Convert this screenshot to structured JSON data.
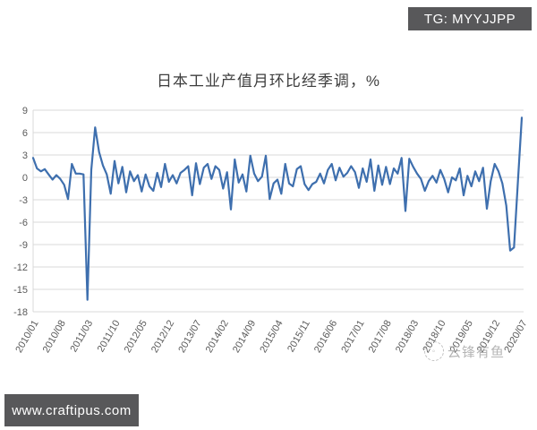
{
  "header": {
    "badge_label": "TG: MYYJJPP"
  },
  "footer": {
    "site_url": "www.craftipus.com"
  },
  "watermark": {
    "text": "云锋有鱼",
    "icon": "dashed-circle-logo"
  },
  "colors": {
    "line": "#3E6FAE",
    "grid": "#D9D9D9",
    "tick_text": "#595959",
    "badge_bg": "#58585A",
    "title_text": "#3E3E3E",
    "background": "#FFFFFF"
  },
  "chart_data": {
    "type": "line",
    "title": "日本工业产值月环比经季调，%",
    "xlabel": "",
    "ylabel": "",
    "x_frequency": "monthly",
    "x_range": [
      "2010/01",
      "2020/07"
    ],
    "x_tick_labels": [
      "2010/01",
      "2010/08",
      "2011/03",
      "2011/10",
      "2012/05",
      "2012/12",
      "2013/07",
      "2014/02",
      "2014/09",
      "2015/04",
      "2015/11",
      "2016/06",
      "2017/01",
      "2017/08",
      "2018/03",
      "2018/10",
      "2019/05",
      "2019/12",
      "2020/07"
    ],
    "x_tick_interval_months": 7,
    "y_ticks": [
      9,
      6,
      3,
      0,
      -3,
      -6,
      -9,
      -12,
      -15,
      -18
    ],
    "ylim": [
      -18,
      9
    ],
    "grid": true,
    "legend": false,
    "values": [
      2.6,
      1.2,
      0.8,
      1.1,
      0.4,
      -0.3,
      0.3,
      -0.2,
      -1.0,
      -2.9,
      1.8,
      0.5,
      0.5,
      0.4,
      -16.4,
      1.0,
      6.7,
      3.4,
      1.6,
      0.4,
      -2.2,
      2.2,
      -0.8,
      1.4,
      -2.0,
      0.8,
      -0.5,
      0.3,
      -1.9,
      0.4,
      -1.2,
      -1.8,
      0.6,
      -1.3,
      1.8,
      -0.6,
      0.3,
      -0.8,
      0.6,
      1.0,
      1.5,
      -2.4,
      1.9,
      -0.9,
      1.3,
      1.8,
      -0.2,
      1.5,
      1.0,
      -1.5,
      0.7,
      -4.3,
      2.4,
      -0.7,
      0.4,
      -1.9,
      2.9,
      0.5,
      -0.5,
      0.1,
      2.9,
      -2.9,
      -0.8,
      -0.3,
      -2.2,
      1.8,
      -0.8,
      -1.2,
      1.1,
      1.5,
      -0.9,
      -1.7,
      -0.9,
      -0.6,
      0.5,
      -0.8,
      1.0,
      1.8,
      -0.4,
      1.3,
      0.1,
      0.6,
      1.5,
      0.7,
      -1.4,
      1.2,
      -0.6,
      2.4,
      -1.8,
      1.6,
      -1.0,
      1.4,
      -0.9,
      1.2,
      0.5,
      2.6,
      -4.5,
      2.5,
      1.4,
      0.5,
      -0.2,
      -1.8,
      -0.5,
      0.2,
      -0.7,
      1.0,
      -0.2,
      -2.0,
      0.0,
      -0.4,
      1.2,
      -2.4,
      0.2,
      -1.2,
      0.8,
      -0.5,
      1.3,
      -4.2,
      -0.5,
      1.8,
      0.8,
      -0.8,
      -3.8,
      -9.8,
      -9.4,
      -0.5,
      8.0
    ],
    "annotations": []
  }
}
